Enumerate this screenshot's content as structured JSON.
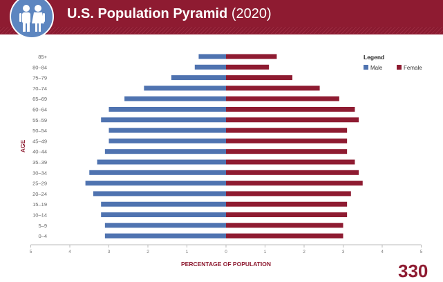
{
  "header": {
    "title_bold": "U.S. Population Pyramid",
    "title_year": "(2020)",
    "icon": "family-icon"
  },
  "footer": {
    "page_number": "330"
  },
  "colors": {
    "male": "#4f73b0",
    "female": "#8e1b31",
    "header_bg": "#8e1b31",
    "axis_text": "#666666"
  },
  "chart_data": {
    "type": "bar",
    "orientation": "horizontal-pyramid",
    "title": "U.S. Population Pyramid (2020)",
    "xlabel": "PERCENTAGE  OF POPULATION",
    "ylabel": "AGE",
    "xlim": [
      -5,
      5
    ],
    "xticks": [
      "5",
      "4",
      "3",
      "2",
      "1",
      "0",
      "1",
      "2",
      "3",
      "4",
      "5"
    ],
    "grid": false,
    "legend": {
      "title": "Legend",
      "position": "top-right"
    },
    "categories": [
      "85+",
      "80–84",
      "75–79",
      "70–74",
      "65–69",
      "60–64",
      "55–59",
      "50–54",
      "45–49",
      "40–44",
      "35–39",
      "30–34",
      "25–29",
      "20–24",
      "15–19",
      "10–14",
      "5–9",
      "0–4"
    ],
    "series": [
      {
        "name": "Male",
        "color": "#4f73b0",
        "values": [
          0.7,
          0.8,
          1.4,
          2.1,
          2.6,
          3.0,
          3.2,
          3.0,
          3.0,
          3.1,
          3.3,
          3.5,
          3.6,
          3.4,
          3.2,
          3.2,
          3.1,
          3.1
        ]
      },
      {
        "name": "Female",
        "color": "#8e1b31",
        "values": [
          1.3,
          1.1,
          1.7,
          2.4,
          2.9,
          3.3,
          3.4,
          3.1,
          3.1,
          3.1,
          3.3,
          3.4,
          3.5,
          3.2,
          3.1,
          3.1,
          3.0,
          3.0
        ]
      }
    ]
  }
}
